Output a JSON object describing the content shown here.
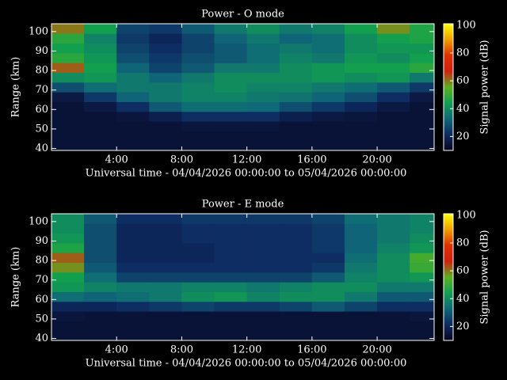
{
  "chart_data": [
    {
      "type": "heatmap",
      "title": "Power - O mode",
      "xlabel": "Universal time - 04/04/2026 00:00:00 to 05/04/2026 00:00:00",
      "ylabel": "Range (km)",
      "zlabel": "Signal power (dB)",
      "xlim": [
        0,
        23.5
      ],
      "ylim": [
        39,
        104
      ],
      "zlim": [
        10,
        101
      ],
      "xticks": [
        {
          "value": 4,
          "label": "4:00"
        },
        {
          "value": 8,
          "label": "8:00"
        },
        {
          "value": 12,
          "label": "12:00"
        },
        {
          "value": 16,
          "label": "16:00"
        },
        {
          "value": 20,
          "label": "20:00"
        }
      ],
      "yticks": [
        40,
        50,
        60,
        70,
        80,
        90,
        100
      ],
      "zticks": [
        20,
        40,
        60,
        80,
        100
      ],
      "colorscale": [
        "#070720",
        "#0e2a62",
        "#0f6878",
        "#12a04e",
        "#5cb020",
        "#d02010",
        "#e03000",
        "#f0a000",
        "#ffff00"
      ],
      "xbins": [
        0,
        2,
        4,
        6,
        8,
        10,
        12,
        14,
        16,
        18,
        20,
        22,
        23.5
      ],
      "ybins": [
        39,
        44,
        49,
        54,
        59,
        64,
        69,
        74,
        79,
        84,
        89,
        94,
        99,
        104
      ],
      "z": [
        [
          14,
          14,
          14,
          14,
          14,
          14,
          14,
          14,
          14,
          14,
          14,
          14
        ],
        [
          14,
          14,
          14,
          14,
          14,
          14,
          14,
          14,
          14,
          14,
          14,
          14
        ],
        [
          14,
          14,
          14,
          14,
          15,
          15,
          15,
          14,
          14,
          14,
          14,
          14
        ],
        [
          14,
          14,
          15,
          18,
          22,
          22,
          22,
          18,
          16,
          15,
          14,
          14
        ],
        [
          14,
          16,
          22,
          30,
          34,
          34,
          33,
          28,
          24,
          20,
          16,
          14
        ],
        [
          16,
          24,
          32,
          36,
          38,
          38,
          36,
          35,
          32,
          28,
          22,
          16
        ],
        [
          28,
          34,
          36,
          36,
          38,
          40,
          38,
          38,
          36,
          34,
          30,
          24
        ],
        [
          40,
          42,
          36,
          32,
          36,
          40,
          40,
          40,
          42,
          40,
          42,
          36
        ],
        [
          62,
          44,
          32,
          26,
          30,
          36,
          36,
          40,
          42,
          44,
          44,
          48
        ],
        [
          48,
          42,
          28,
          24,
          28,
          30,
          34,
          38,
          36,
          42,
          40,
          44
        ],
        [
          44,
          40,
          26,
          22,
          26,
          30,
          34,
          36,
          34,
          40,
          42,
          42
        ],
        [
          48,
          38,
          24,
          20,
          26,
          32,
          36,
          32,
          34,
          40,
          44,
          46
        ],
        [
          60,
          44,
          26,
          24,
          30,
          36,
          40,
          36,
          38,
          44,
          58,
          46
        ]
      ]
    },
    {
      "type": "heatmap",
      "title": "Power - E mode",
      "xlabel": "Universal time - 04/04/2026 00:00:00 to 05/04/2026 00:00:00",
      "ylabel": "Range (km)",
      "zlabel": "Signal power (dB)",
      "xlim": [
        0,
        23.5
      ],
      "ylim": [
        39,
        104
      ],
      "zlim": [
        10,
        101
      ],
      "xticks": [
        {
          "value": 4,
          "label": "4:00"
        },
        {
          "value": 8,
          "label": "8:00"
        },
        {
          "value": 12,
          "label": "12:00"
        },
        {
          "value": 16,
          "label": "16:00"
        },
        {
          "value": 20,
          "label": "20:00"
        }
      ],
      "yticks": [
        40,
        50,
        60,
        70,
        80,
        90,
        100
      ],
      "zticks": [
        20,
        40,
        60,
        80,
        100
      ],
      "colorscale": [
        "#070720",
        "#0e2a62",
        "#0f6878",
        "#12a04e",
        "#5cb020",
        "#d02010",
        "#e03000",
        "#f0a000",
        "#ffff00"
      ],
      "xbins": [
        0,
        2,
        4,
        6,
        8,
        10,
        12,
        14,
        16,
        18,
        20,
        22,
        23.5
      ],
      "ybins": [
        39,
        44,
        49,
        54,
        59,
        64,
        69,
        74,
        79,
        84,
        89,
        94,
        99,
        104
      ],
      "z": [
        [
          14,
          14,
          14,
          14,
          14,
          14,
          14,
          14,
          14,
          14,
          14,
          14
        ],
        [
          14,
          14,
          14,
          14,
          14,
          14,
          14,
          14,
          14,
          14,
          14,
          14
        ],
        [
          15,
          14,
          14,
          14,
          14,
          14,
          14,
          14,
          14,
          14,
          14,
          15
        ],
        [
          20,
          20,
          22,
          24,
          26,
          24,
          24,
          26,
          30,
          26,
          22,
          22
        ],
        [
          34,
          32,
          34,
          36,
          40,
          42,
          38,
          40,
          40,
          36,
          30,
          30
        ],
        [
          42,
          38,
          36,
          36,
          38,
          38,
          36,
          38,
          40,
          40,
          36,
          36
        ],
        [
          44,
          34,
          26,
          26,
          26,
          26,
          26,
          26,
          30,
          38,
          40,
          42
        ],
        [
          58,
          30,
          22,
          22,
          22,
          22,
          22,
          22,
          24,
          36,
          40,
          50
        ],
        [
          62,
          28,
          20,
          20,
          20,
          22,
          22,
          22,
          22,
          34,
          40,
          52
        ],
        [
          46,
          28,
          20,
          20,
          20,
          22,
          22,
          22,
          24,
          32,
          38,
          42
        ],
        [
          42,
          28,
          20,
          20,
          22,
          22,
          22,
          22,
          24,
          32,
          36,
          40
        ],
        [
          40,
          28,
          20,
          20,
          22,
          22,
          22,
          22,
          24,
          32,
          36,
          38
        ],
        [
          40,
          30,
          22,
          22,
          24,
          24,
          24,
          24,
          26,
          34,
          36,
          38
        ]
      ]
    }
  ]
}
